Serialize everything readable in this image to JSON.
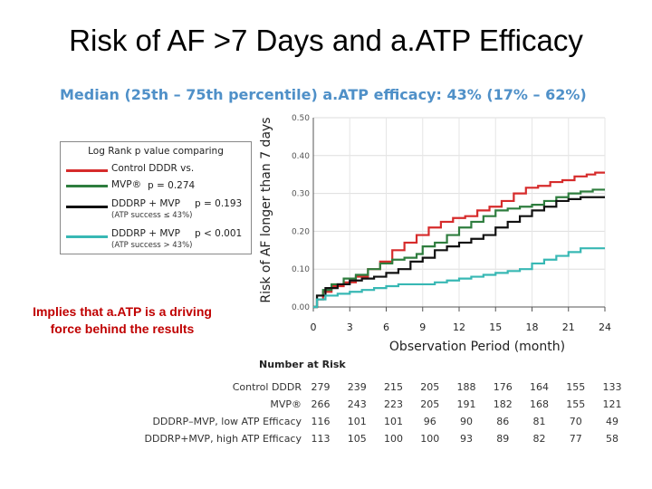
{
  "slide": {
    "title": "Risk of AF >7 Days and a.ATP Efficacy",
    "note_line1": "Implies that a.ATP is a driving",
    "note_line2": "force behind the results"
  },
  "chart_data": {
    "type": "line",
    "subtitle": "Median (25th – 75th percentile) a.ATP efficacy: 43% (17% – 62%)",
    "xlabel": "Observation Period (month)",
    "ylabel": "Risk of AF longer than 7 days",
    "xlim": [
      0,
      24
    ],
    "ylim": [
      0,
      0.5
    ],
    "xticks": [
      "0",
      "3",
      "6",
      "9",
      "12",
      "15",
      "18",
      "21",
      "24"
    ],
    "yticks": [
      "0.00",
      "0.10",
      "0.20",
      "0.30",
      "0.40",
      "0.50"
    ],
    "legend": {
      "header": "Log Rank p value comparing",
      "control": "Control DDDR vs.",
      "entries": [
        {
          "label": "MVP®",
          "p": "p = 0.274",
          "sub": "",
          "color": "#d62b2b"
        },
        {
          "label": "DDDRP + MVP",
          "p": "p = 0.193",
          "sub": "(ATP success ≤ 43%)",
          "color": "#111111"
        },
        {
          "label": "DDDRP + MVP",
          "p": "p < 0.001",
          "sub": "(ATP success > 43%)",
          "color": "#38b8b4"
        }
      ]
    },
    "series": [
      {
        "name": "Control DDDR",
        "color": "#d62b2b",
        "points": [
          [
            0,
            0
          ],
          [
            0.3,
            0.02
          ],
          [
            0.8,
            0.04
          ],
          [
            1.5,
            0.055
          ],
          [
            2.5,
            0.065
          ],
          [
            3.5,
            0.08
          ],
          [
            4.5,
            0.1
          ],
          [
            5.5,
            0.12
          ],
          [
            6.5,
            0.15
          ],
          [
            7.5,
            0.17
          ],
          [
            8.5,
            0.19
          ],
          [
            9.5,
            0.21
          ],
          [
            10.5,
            0.225
          ],
          [
            11.5,
            0.235
          ],
          [
            12.5,
            0.24
          ],
          [
            13.5,
            0.255
          ],
          [
            14.5,
            0.265
          ],
          [
            15.5,
            0.28
          ],
          [
            16.5,
            0.3
          ],
          [
            17.5,
            0.315
          ],
          [
            18.5,
            0.32
          ],
          [
            19.5,
            0.33
          ],
          [
            20.5,
            0.335
          ],
          [
            21.5,
            0.345
          ],
          [
            22.5,
            0.35
          ],
          [
            23.2,
            0.355
          ],
          [
            24,
            0.355
          ]
        ]
      },
      {
        "name": "MVP",
        "color": "#2e7d3e",
        "points": [
          [
            0,
            0
          ],
          [
            0.3,
            0.03
          ],
          [
            0.8,
            0.045
          ],
          [
            1.5,
            0.06
          ],
          [
            2.5,
            0.075
          ],
          [
            3.5,
            0.085
          ],
          [
            4.5,
            0.1
          ],
          [
            5.5,
            0.115
          ],
          [
            6.5,
            0.125
          ],
          [
            7.5,
            0.13
          ],
          [
            8.5,
            0.14
          ],
          [
            9,
            0.16
          ],
          [
            10,
            0.17
          ],
          [
            11,
            0.19
          ],
          [
            12,
            0.21
          ],
          [
            13,
            0.225
          ],
          [
            14,
            0.24
          ],
          [
            15,
            0.255
          ],
          [
            16,
            0.26
          ],
          [
            17,
            0.265
          ],
          [
            18,
            0.27
          ],
          [
            19,
            0.28
          ],
          [
            20,
            0.29
          ],
          [
            21,
            0.3
          ],
          [
            22,
            0.305
          ],
          [
            23,
            0.31
          ],
          [
            24,
            0.31
          ]
        ]
      },
      {
        "name": "DDDRP + MVP, low ATP Efficacy",
        "color": "#111111",
        "points": [
          [
            0,
            0
          ],
          [
            0.3,
            0.03
          ],
          [
            1,
            0.05
          ],
          [
            2,
            0.06
          ],
          [
            3,
            0.07
          ],
          [
            4,
            0.075
          ],
          [
            5,
            0.08
          ],
          [
            6,
            0.09
          ],
          [
            7,
            0.1
          ],
          [
            8,
            0.12
          ],
          [
            9,
            0.13
          ],
          [
            10,
            0.15
          ],
          [
            11,
            0.16
          ],
          [
            12,
            0.17
          ],
          [
            13,
            0.18
          ],
          [
            14,
            0.19
          ],
          [
            15,
            0.21
          ],
          [
            16,
            0.225
          ],
          [
            17,
            0.24
          ],
          [
            18,
            0.255
          ],
          [
            19,
            0.265
          ],
          [
            20,
            0.28
          ],
          [
            21,
            0.285
          ],
          [
            22,
            0.29
          ],
          [
            24,
            0.29
          ]
        ]
      },
      {
        "name": "DDDRP + MVP, high ATP Efficacy",
        "color": "#38b8b4",
        "points": [
          [
            0,
            0
          ],
          [
            0.3,
            0.02
          ],
          [
            1,
            0.03
          ],
          [
            2,
            0.035
          ],
          [
            3,
            0.04
          ],
          [
            4,
            0.045
          ],
          [
            5,
            0.05
          ],
          [
            6,
            0.055
          ],
          [
            7,
            0.06
          ],
          [
            8,
            0.06
          ],
          [
            9,
            0.06
          ],
          [
            10,
            0.065
          ],
          [
            11,
            0.07
          ],
          [
            12,
            0.075
          ],
          [
            13,
            0.08
          ],
          [
            14,
            0.085
          ],
          [
            15,
            0.09
          ],
          [
            16,
            0.095
          ],
          [
            17,
            0.1
          ],
          [
            18,
            0.115
          ],
          [
            19,
            0.125
          ],
          [
            20,
            0.135
          ],
          [
            21,
            0.145
          ],
          [
            22,
            0.155
          ],
          [
            24,
            0.155
          ]
        ]
      }
    ],
    "number_at_risk": {
      "header": "Number at Risk",
      "rows": [
        {
          "label": "Control DDDR",
          "values": [
            "279",
            "239",
            "215",
            "205",
            "188",
            "176",
            "164",
            "155",
            "133"
          ]
        },
        {
          "label": "MVP®",
          "values": [
            "266",
            "243",
            "223",
            "205",
            "191",
            "182",
            "168",
            "155",
            "121"
          ]
        },
        {
          "label": "DDDRP–MVP, low ATP Efficacy",
          "values": [
            "116",
            "101",
            "101",
            "96",
            "90",
            "86",
            "81",
            "70",
            "49"
          ]
        },
        {
          "label": "DDDRP+MVP, high ATP Efficacy",
          "values": [
            "113",
            "105",
            "100",
            "100",
            "93",
            "89",
            "82",
            "77",
            "58"
          ]
        }
      ]
    }
  }
}
